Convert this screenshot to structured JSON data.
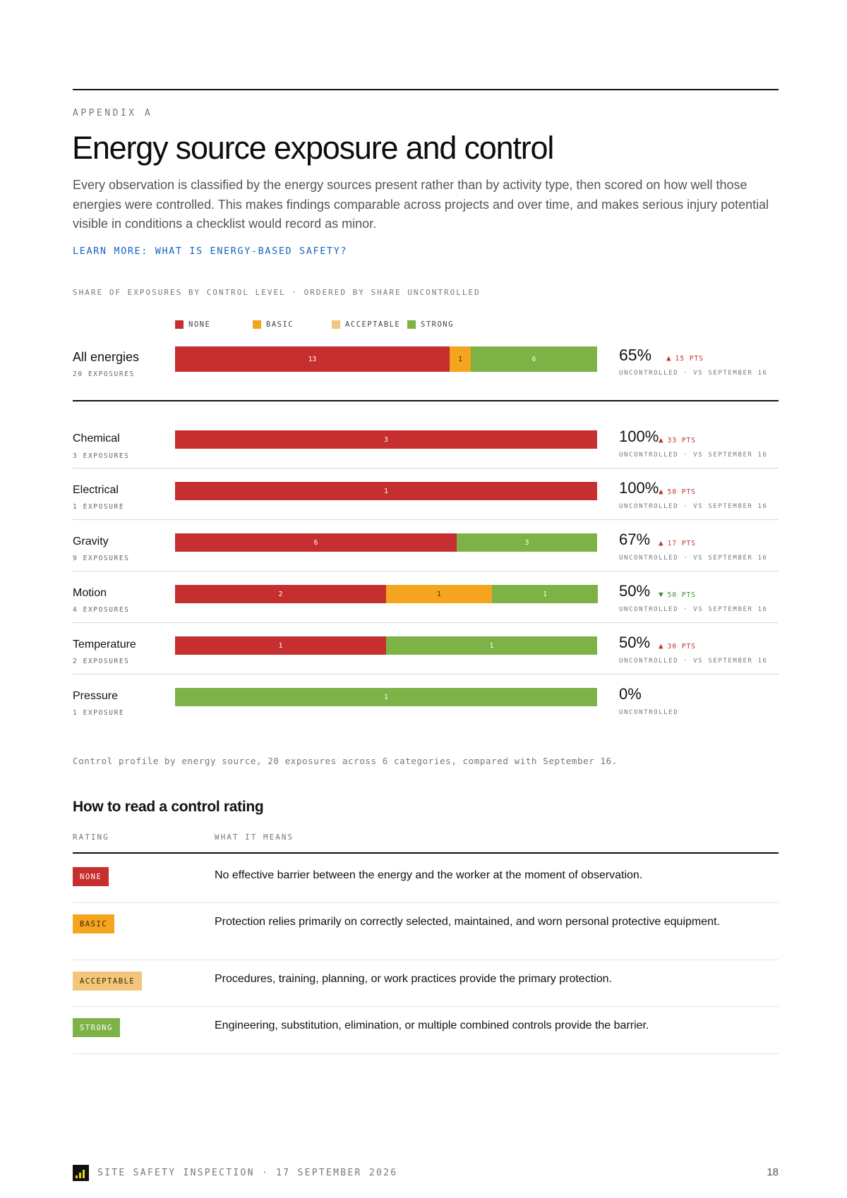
{
  "header": {
    "eyebrow": "APPENDIX A",
    "title": "Energy source exposure and control",
    "intro": "Every observation is classified by the energy sources present rather than by activity type, then scored on how well those energies were controlled. This makes findings comparable across projects and over time, and makes serious injury potential visible in conditions a checklist would record as minor.",
    "learn_more": "LEARN MORE: WHAT IS ENERGY-BASED SAFETY?"
  },
  "colors": {
    "none": "#c62f30",
    "basic": "#f4a41f",
    "acceptable": "#f2c77b",
    "strong": "#7db346",
    "up": "#c62f30",
    "down": "#3d8a34",
    "link": "#1565c0"
  },
  "chart_data": {
    "type": "bar",
    "orientation": "horizontal",
    "stacked": true,
    "normalized": true,
    "caption": "SHARE OF EXPOSURES BY CONTROL LEVEL · ORDERED BY SHARE UNCONTROLLED",
    "legend": [
      {
        "key": "none",
        "label": "NONE"
      },
      {
        "key": "basic",
        "label": "BASIC"
      },
      {
        "key": "acceptable",
        "label": "ACCEPTABLE"
      },
      {
        "key": "strong",
        "label": "STRONG"
      }
    ],
    "total": {
      "name": "All energies",
      "exposures": "20 EXPOSURES",
      "values": {
        "none": 13,
        "basic": 1,
        "acceptable": 0,
        "strong": 6
      },
      "pct": "65%",
      "delta": {
        "direction": "up",
        "arrow": "▲",
        "text": "15 PTS"
      },
      "note": "UNCONTROLLED · VS SEPTEMBER 16"
    },
    "rows": [
      {
        "name": "Chemical",
        "exposures": "3 EXPOSURES",
        "values": {
          "none": 3,
          "basic": 0,
          "acceptable": 0,
          "strong": 0
        },
        "pct": "100%",
        "delta": {
          "direction": "up",
          "arrow": "▲",
          "text": "33 PTS"
        },
        "note": "UNCONTROLLED · VS SEPTEMBER 16"
      },
      {
        "name": "Electrical",
        "exposures": "1 EXPOSURE",
        "values": {
          "none": 1,
          "basic": 0,
          "acceptable": 0,
          "strong": 0
        },
        "pct": "100%",
        "delta": {
          "direction": "up",
          "arrow": "▲",
          "text": "50 PTS"
        },
        "note": "UNCONTROLLED · VS SEPTEMBER 16"
      },
      {
        "name": "Gravity",
        "exposures": "9 EXPOSURES",
        "values": {
          "none": 6,
          "basic": 0,
          "acceptable": 0,
          "strong": 3
        },
        "pct": "67%",
        "delta": {
          "direction": "up",
          "arrow": "▲",
          "text": "17 PTS"
        },
        "note": "UNCONTROLLED · VS SEPTEMBER 16"
      },
      {
        "name": "Motion",
        "exposures": "4 EXPOSURES",
        "values": {
          "none": 2,
          "basic": 1,
          "acceptable": 0,
          "strong": 1
        },
        "pct": "50%",
        "delta": {
          "direction": "down",
          "arrow": "▼",
          "text": "50 PTS"
        },
        "note": "UNCONTROLLED · VS SEPTEMBER 16"
      },
      {
        "name": "Temperature",
        "exposures": "2 EXPOSURES",
        "values": {
          "none": 1,
          "basic": 0,
          "acceptable": 0,
          "strong": 1
        },
        "pct": "50%",
        "delta": {
          "direction": "up",
          "arrow": "▲",
          "text": "30 PTS"
        },
        "note": "UNCONTROLLED · VS SEPTEMBER 16"
      },
      {
        "name": "Pressure",
        "exposures": "1 EXPOSURE",
        "values": {
          "none": 0,
          "basic": 0,
          "acceptable": 0,
          "strong": 1
        },
        "pct": "0%",
        "delta": null,
        "note": "UNCONTROLLED"
      }
    ],
    "figure_caption": "Control profile by energy source, 20 exposures across 6 categories, compared with September 16."
  },
  "rating_guide": {
    "title": "How to read a control rating",
    "col_rating": "RATING",
    "col_meaning": "WHAT IT MEANS",
    "rows": [
      {
        "key": "none",
        "badge": "NONE",
        "meaning": "No effective barrier between the energy and the worker at the moment of observation."
      },
      {
        "key": "basic",
        "badge": "BASIC",
        "meaning": "Protection relies primarily on correctly selected, maintained, and worn personal protective equipment."
      },
      {
        "key": "acceptable",
        "badge": "ACCEPTABLE",
        "meaning": "Procedures, training, planning, or work practices provide the primary protection."
      },
      {
        "key": "strong",
        "badge": "STRONG",
        "meaning": "Engineering, substitution, elimination, or multiple combined controls provide the barrier."
      }
    ]
  },
  "footer": {
    "text": "SITE SAFETY INSPECTION · 17 SEPTEMBER 2026",
    "page": "18"
  }
}
